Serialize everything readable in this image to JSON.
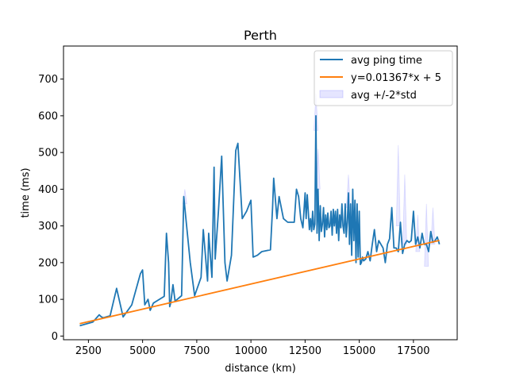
{
  "chart_data": {
    "type": "line",
    "title": "Perth",
    "xlabel": "distance (km)",
    "ylabel": "time (ms)",
    "xlim": [
      1350,
      19520
    ],
    "ylim": [
      -10,
      790
    ],
    "xticks": [
      2500,
      5000,
      7500,
      10000,
      12500,
      15000,
      17500
    ],
    "xtick_labels": [
      "2500",
      "5000",
      "7500",
      "10000",
      "12500",
      "15000",
      "17500"
    ],
    "yticks": [
      0,
      100,
      200,
      300,
      400,
      500,
      600,
      700
    ],
    "ytick_labels": [
      "0",
      "100",
      "200",
      "300",
      "400",
      "500",
      "600",
      "700"
    ],
    "grid": false,
    "legend_position": "top-right",
    "colors": {
      "avg": "#1f77b4",
      "fit": "#ff7f0e",
      "band": "#7f7fff",
      "spine": "#000000"
    },
    "series": [
      {
        "name": "avg ping time",
        "kind": "line",
        "x": [
          2100,
          2700,
          3000,
          3100,
          3200,
          3500,
          3800,
          4100,
          4500,
          4900,
          5000,
          5100,
          5250,
          5350,
          5500,
          6000,
          6100,
          6200,
          6250,
          6300,
          6400,
          6500,
          6800,
          6900,
          7000,
          7200,
          7400,
          7700,
          7800,
          8000,
          8050,
          8200,
          8300,
          8350,
          8500,
          8650,
          8800,
          8900,
          9100,
          9300,
          9400,
          9600,
          9800,
          10000,
          10100,
          10300,
          10500,
          10900,
          11000,
          11050,
          11200,
          11300,
          11500,
          11700,
          11900,
          12000,
          12100,
          12200,
          12300,
          12400,
          12500,
          12550,
          12600,
          12700,
          12750,
          12800,
          12850,
          12900,
          12950,
          13000,
          13050,
          13100,
          13150,
          13200,
          13250,
          13300,
          13350,
          13400,
          13450,
          13500,
          13550,
          13600,
          13650,
          13700,
          13750,
          13800,
          13850,
          13900,
          13950,
          14000,
          14050,
          14100,
          14150,
          14200,
          14250,
          14300,
          14350,
          14400,
          14450,
          14500,
          14550,
          14600,
          14650,
          14700,
          14750,
          14800,
          14850,
          14900,
          14950,
          15000,
          15050,
          15100,
          15150,
          15200,
          15300,
          15400,
          15500,
          15600,
          15700,
          15800,
          15900,
          16000,
          16100,
          16200,
          16300,
          16400,
          16500,
          16600,
          16700,
          16800,
          16900,
          17000,
          17100,
          17200,
          17300,
          17400,
          17500,
          17600,
          17700,
          17800,
          17900,
          18000,
          18100,
          18200,
          18300,
          18400,
          18500,
          18600,
          18700
        ],
        "y": [
          28,
          38,
          58,
          52,
          50,
          55,
          130,
          52,
          85,
          170,
          180,
          85,
          100,
          70,
          90,
          108,
          280,
          200,
          80,
          90,
          140,
          95,
          110,
          380,
          320,
          200,
          110,
          160,
          290,
          150,
          280,
          160,
          460,
          210,
          340,
          490,
          200,
          150,
          220,
          505,
          525,
          320,
          340,
          370,
          215,
          220,
          230,
          235,
          350,
          430,
          320,
          380,
          320,
          310,
          310,
          310,
          400,
          380,
          320,
          295,
          390,
          320,
          385,
          290,
          320,
          285,
          340,
          290,
          305,
          600,
          280,
          400,
          260,
          355,
          285,
          305,
          350,
          270,
          330,
          290,
          335,
          295,
          300,
          340,
          275,
          345,
          300,
          340,
          280,
          345,
          260,
          330,
          295,
          360,
          300,
          280,
          360,
          270,
          310,
          390,
          250,
          360,
          220,
          400,
          260,
          370,
          200,
          360,
          215,
          340,
          195,
          200,
          215,
          205,
          210,
          230,
          205,
          250,
          290,
          230,
          260,
          250,
          240,
          200,
          250,
          265,
          350,
          240,
          240,
          230,
          310,
          225,
          250,
          260,
          255,
          260,
          340,
          250,
          270,
          240,
          280,
          250,
          250,
          230,
          285,
          255,
          260,
          270,
          250
        ],
        "color": "#1f77b4"
      },
      {
        "name": "y=0.01367*x + 5",
        "kind": "fit-line",
        "slope": 0.01367,
        "intercept": 5,
        "x": [
          2100,
          18700
        ],
        "y": [
          33.7,
          260.6
        ],
        "color": "#ff7f0e"
      },
      {
        "name": "avg +/-2*std",
        "kind": "band",
        "spikes": [
          {
            "x": 6950,
            "low": 360,
            "high": 400
          },
          {
            "x": 13000,
            "low": 560,
            "high": 660
          },
          {
            "x": 13100,
            "low": 400,
            "high": 510
          },
          {
            "x": 14500,
            "low": 350,
            "high": 440
          },
          {
            "x": 16800,
            "low": 300,
            "high": 520
          },
          {
            "x": 17100,
            "low": 250,
            "high": 440
          },
          {
            "x": 17700,
            "low": 230,
            "high": 330
          },
          {
            "x": 18100,
            "low": 190,
            "high": 360
          },
          {
            "x": 18400,
            "low": 250,
            "high": 350
          }
        ],
        "color": "#7f7fff"
      }
    ]
  }
}
